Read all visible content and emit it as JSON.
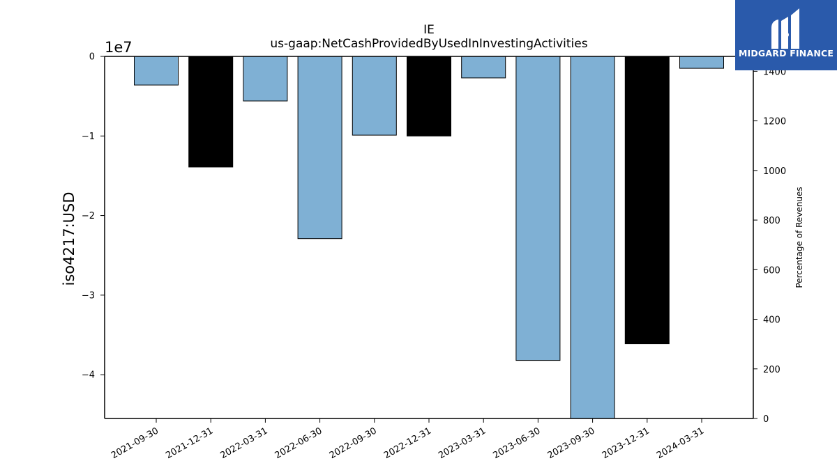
{
  "logo": {
    "text": "MIDGARD FINANCE",
    "background": "#2a5aab"
  },
  "chart_data": {
    "type": "bar",
    "title": "IE",
    "subtitle": "us-gaap:NetCashProvidedByUsedInInvestingActivities",
    "ylabel": "iso4217:USD",
    "ylabel_right": "Percentage of Revenues",
    "scale_label": "1e7",
    "categories": [
      "2021-09-30",
      "2021-12-31",
      "2022-03-31",
      "2022-06-30",
      "2022-09-30",
      "2022-12-31",
      "2023-03-31",
      "2023-06-30",
      "2023-09-30",
      "2023-12-31",
      "2024-03-31"
    ],
    "values": [
      -3600000,
      -13900000,
      -5600000,
      -22900000,
      -9900000,
      -10000000,
      -2700000,
      -38200000,
      -45500000,
      -36100000,
      -1500000
    ],
    "bar_colors": [
      "#7fb0d4",
      "#000000",
      "#7fb0d4",
      "#7fb0d4",
      "#7fb0d4",
      "#000000",
      "#7fb0d4",
      "#7fb0d4",
      "#7fb0d4",
      "#000000",
      "#7fb0d4"
    ],
    "ylim": [
      -45500000,
      0
    ],
    "yticks": [
      0,
      -10000000,
      -20000000,
      -30000000,
      -40000000
    ],
    "ytick_labels": [
      "0",
      "−1",
      "−2",
      "−3",
      "−4"
    ],
    "y2lim": [
      0,
      1460
    ],
    "y2ticks": [
      0,
      200,
      400,
      600,
      800,
      1000,
      1200,
      1400
    ],
    "y2tick_labels": [
      "0",
      "200",
      "400",
      "600",
      "800",
      "1000",
      "1200",
      "1400"
    ],
    "grid": false,
    "legend": "none"
  }
}
